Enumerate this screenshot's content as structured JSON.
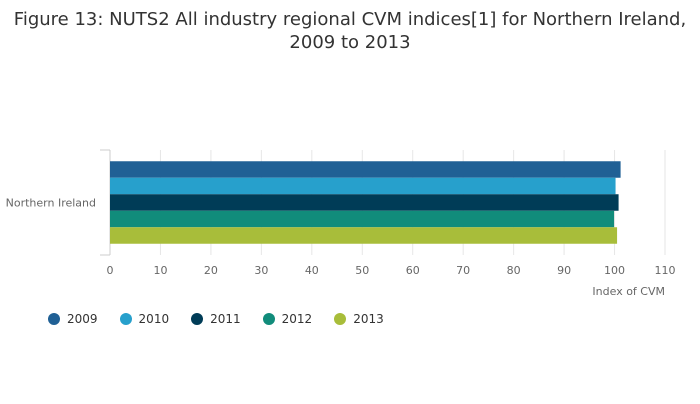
{
  "chart_data": {
    "type": "bar",
    "orientation": "horizontal",
    "title_lines": [
      "Figure 13: NUTS2 All industry regional CVM indices[1] for Northern Ireland,",
      "2009 to 2013"
    ],
    "xlabel": "Index of CVM",
    "ylabel": "",
    "categories": [
      "Northern Ireland"
    ],
    "xlim": [
      0,
      110
    ],
    "xticks": [
      0,
      10,
      20,
      30,
      40,
      50,
      60,
      70,
      80,
      90,
      100,
      110
    ],
    "grid": false,
    "legend_position": "bottom-left",
    "series": [
      {
        "name": "2009",
        "color": "#206095",
        "values": [
          101.2
        ]
      },
      {
        "name": "2010",
        "color": "#27a0cc",
        "values": [
          100.2
        ]
      },
      {
        "name": "2011",
        "color": "#003c57",
        "values": [
          100.8
        ]
      },
      {
        "name": "2012",
        "color": "#118c7b",
        "values": [
          99.9
        ]
      },
      {
        "name": "2013",
        "color": "#a8bd3a",
        "values": [
          100.5
        ]
      }
    ]
  }
}
